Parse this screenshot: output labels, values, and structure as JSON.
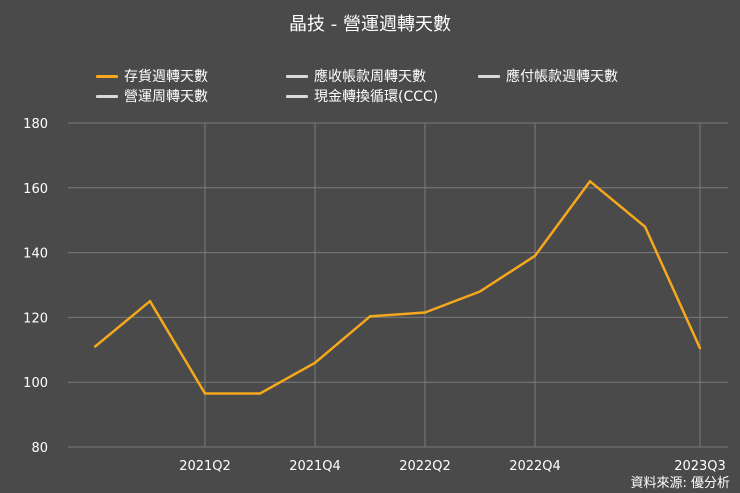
{
  "title": "晶技 - 營運週轉天數",
  "source": "資料來源: 優分析",
  "colors": {
    "background": "#4a4a4a",
    "grid": "#7a7a7a",
    "axis_text": "#ffffff",
    "inventory": "#f5a81c",
    "other": "#d9d9d9"
  },
  "legend": [
    {
      "label": "存貨週轉天數",
      "color": "#f5a81c"
    },
    {
      "label": "應收帳款周轉天數",
      "color": "#d9d9d9"
    },
    {
      "label": "應付帳款週轉天數",
      "color": "#d9d9d9"
    },
    {
      "label": "營運周轉天數",
      "color": "#d9d9d9"
    },
    {
      "label": "現金轉換循環(CCC)",
      "color": "#d9d9d9"
    }
  ],
  "chart_data": {
    "type": "line",
    "title": "晶技 - 營運週轉天數",
    "x": [
      "",
      "",
      "2021Q2",
      "",
      "2021Q4",
      "",
      "2022Q2",
      "",
      "2022Q4",
      "",
      "",
      "2023Q3"
    ],
    "xticks_labeled": [
      "2021Q2",
      "2021Q4",
      "2022Q2",
      "2022Q4",
      "2023Q3"
    ],
    "ylim": [
      80,
      180
    ],
    "yticks": [
      80,
      100,
      120,
      140,
      160,
      180
    ],
    "grid": true,
    "legend_position": "top",
    "series": [
      {
        "name": "存貨週轉天數",
        "color": "#f5a81c",
        "values": [
          111,
          125,
          96.5,
          96.5,
          106,
          120.3,
          121.5,
          128,
          139,
          162,
          148,
          110.5
        ]
      }
    ]
  }
}
